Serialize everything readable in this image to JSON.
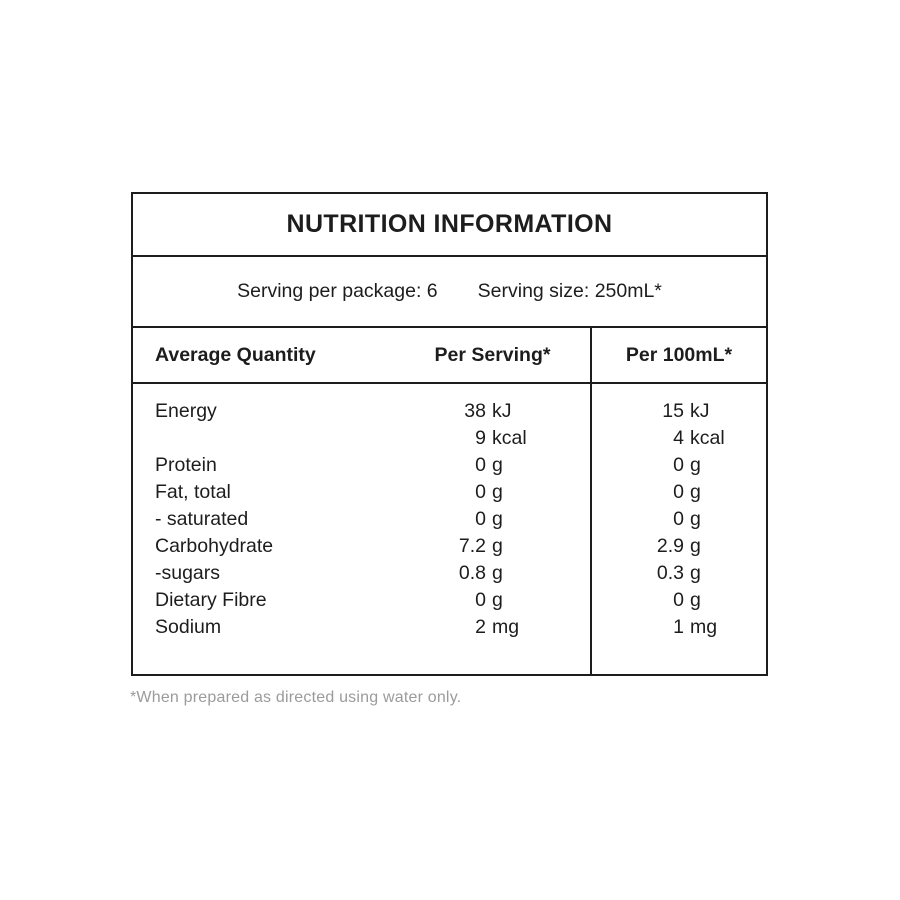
{
  "label": {
    "title": "NUTRITION INFORMATION",
    "serving": {
      "per_package": "Serving per package: 6",
      "size": "Serving size: 250mL*"
    },
    "columns": {
      "nutrient": "Average Quantity",
      "per_serving": "Per Serving*",
      "per_100ml": "Per 100mL*"
    },
    "rows": [
      {
        "label": "Energy",
        "serving_num": "38",
        "serving_unit": "kJ",
        "per100_num": "15",
        "per100_unit": "kJ"
      },
      {
        "label": "",
        "serving_num": "9",
        "serving_unit": "kcal",
        "per100_num": "4",
        "per100_unit": "kcal"
      },
      {
        "label": "Protein",
        "serving_num": "0",
        "serving_unit": "g",
        "per100_num": "0",
        "per100_unit": "g"
      },
      {
        "label": "Fat, total",
        "serving_num": "0",
        "serving_unit": "g",
        "per100_num": "0",
        "per100_unit": "g"
      },
      {
        "label": "- saturated",
        "serving_num": "0",
        "serving_unit": "g",
        "per100_num": "0",
        "per100_unit": "g"
      },
      {
        "label": "Carbohydrate",
        "serving_num": "7.2",
        "serving_unit": "g",
        "per100_num": "2.9",
        "per100_unit": "g"
      },
      {
        "label": "-sugars",
        "serving_num": "0.8",
        "serving_unit": "g",
        "per100_num": "0.3",
        "per100_unit": "g"
      },
      {
        "label": "Dietary Fibre",
        "serving_num": "0",
        "serving_unit": "g",
        "per100_num": "0",
        "per100_unit": "g"
      },
      {
        "label": "Sodium",
        "serving_num": "2",
        "serving_unit": "mg",
        "per100_num": "1",
        "per100_unit": "mg"
      }
    ],
    "footnote": "*When prepared as directed using water only.",
    "colors": {
      "text": "#1d1d1d",
      "border": "#1d1d1d",
      "footnote_text": "#9b9b9b",
      "background": "#ffffff"
    }
  }
}
